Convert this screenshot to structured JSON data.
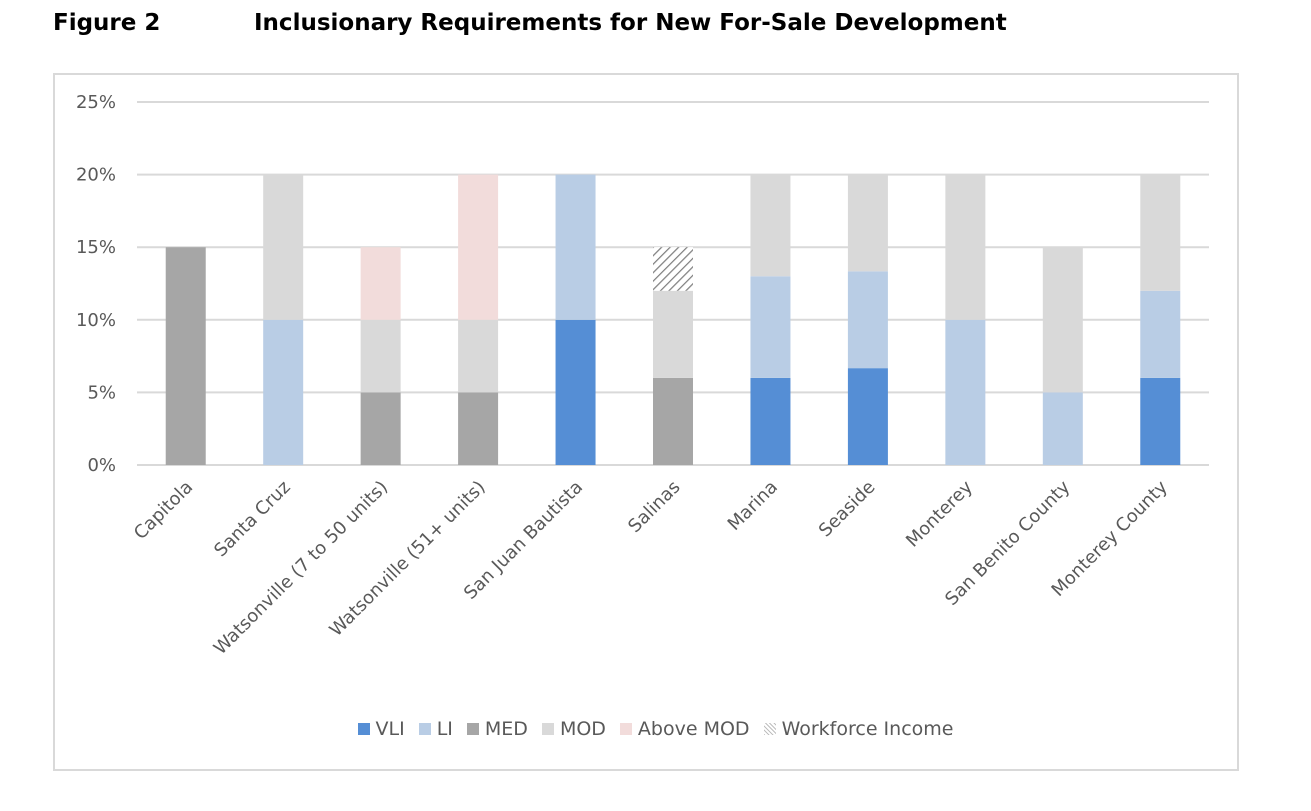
{
  "figure_label": "Figure 2",
  "figure_title": "Inclusionary Requirements for New For-Sale Development",
  "colors": {
    "VLI": "#558ed5",
    "LI": "#b9cde5",
    "MED": "#a6a6a6",
    "MOD": "#d9d9d9",
    "Above MOD": "#f2dcdb",
    "Workforce Income": "hatch"
  },
  "chart_data": {
    "type": "bar",
    "stacked": true,
    "title": "",
    "xlabel": "",
    "ylabel": "",
    "ylim": [
      0,
      0.25
    ],
    "yticks": [
      "0%",
      "5%",
      "10%",
      "15%",
      "20%",
      "25%"
    ],
    "grid": true,
    "legend_position": "bottom",
    "categories": [
      "Capitola",
      "Santa Cruz",
      "Watsonville (7 to 50 units)",
      "Watsonville (51+ units)",
      "San Juan Bautista",
      "Salinas",
      "Marina",
      "Seaside",
      "Monterey",
      "San Benito County",
      "Monterey County"
    ],
    "series": [
      {
        "name": "VLI",
        "values": [
          0,
          0,
          0,
          0,
          0.1,
          0,
          0.06,
          0.0667,
          0,
          0,
          0.06
        ]
      },
      {
        "name": "LI",
        "values": [
          0,
          0.1,
          0,
          0,
          0.1,
          0,
          0.07,
          0.0667,
          0.1,
          0.05,
          0.06
        ]
      },
      {
        "name": "MED",
        "values": [
          0.15,
          0,
          0.05,
          0.05,
          0,
          0.06,
          0,
          0,
          0,
          0,
          0
        ]
      },
      {
        "name": "MOD",
        "values": [
          0,
          0.1,
          0.05,
          0.05,
          0,
          0.06,
          0.07,
          0.0667,
          0.1,
          0.1,
          0.08
        ]
      },
      {
        "name": "Above MOD",
        "values": [
          0,
          0,
          0.05,
          0.1,
          0,
          0,
          0,
          0,
          0,
          0,
          0
        ]
      },
      {
        "name": "Workforce Income",
        "values": [
          0,
          0,
          0,
          0,
          0,
          0.03,
          0,
          0,
          0,
          0,
          0
        ]
      }
    ]
  }
}
